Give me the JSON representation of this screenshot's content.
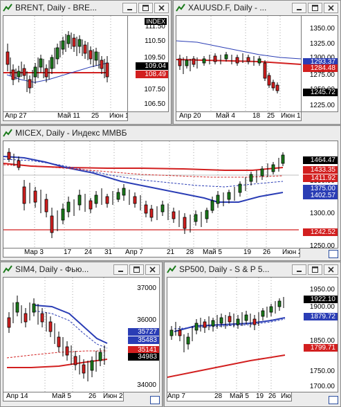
{
  "windows": {
    "brent": {
      "title": "BRENT, Daily - BRE...",
      "scale_header": "INDEX",
      "scale_labels": [
        "111.50",
        "110.50",
        "109.50",
        "107.50",
        "106.50"
      ],
      "price_tag": "109.04",
      "ma_tag": "108.49",
      "time_labels": [
        "Апр 27",
        "Май 11",
        "25",
        "Июн 1"
      ]
    },
    "xauusd": {
      "title": "XAUUSD.F, Daily - ...",
      "scale_labels": [
        "1350.00",
        "1325.00",
        "1300.00",
        "1275.00",
        "1250.00",
        "1225.00"
      ],
      "price_tag": "1245.72",
      "ma_tag": "1284.48",
      "ma2_tag": "1293.37",
      "time_labels": [
        "Апр 20",
        "Май 4",
        "18",
        "25",
        "Июн 1"
      ]
    },
    "micex": {
      "title": "MICEX, Daily - Индекс ММВБ",
      "scale_labels": [
        "1300.00",
        "1250.00",
        "1350.00"
      ],
      "tags": [
        {
          "v": "1464.47",
          "c": "#000000"
        },
        {
          "v": "1433.35",
          "c": "#d21f1f"
        },
        {
          "v": "1411.92",
          "c": "#d21f1f"
        },
        {
          "v": "1402.57",
          "c": "#2a3db5"
        },
        {
          "v": "1375.00",
          "c": "#2a3db5"
        },
        {
          "v": "1242.52",
          "c": "#d21f1f"
        }
      ],
      "time_labels": [
        "Мар 3",
        "17",
        "24",
        "31",
        "Апр 7",
        "21",
        "28",
        "Май 5",
        "19",
        "26",
        "Июн 2"
      ]
    },
    "sim4": {
      "title": "SIM4, Daily - Фью...",
      "scale_labels": [
        "37000",
        "36000",
        "35000",
        "34000"
      ],
      "tags": [
        {
          "v": "35727",
          "c": "#2a3db5"
        },
        {
          "v": "35483",
          "c": "#2a3db5"
        },
        {
          "v": "35141",
          "c": "#d21f1f"
        },
        {
          "v": "34983",
          "c": "#000000"
        }
      ],
      "time_labels": [
        "Апр 14",
        "Май 5",
        "26",
        "Июн 2"
      ]
    },
    "sp500": {
      "title": "SP500, Daily - S & P 5...",
      "scale_labels": [
        "1950.00",
        "1900.00",
        "1850.00",
        "1750.00",
        "1700.00"
      ],
      "tags": [
        {
          "v": "1922.10",
          "c": "#000000"
        },
        {
          "v": "1879.72",
          "c": "#2a3db5"
        },
        {
          "v": "1799.71",
          "c": "#d21f1f"
        }
      ],
      "time_labels": [
        "Апр 7",
        "28",
        "Май 5",
        "19",
        "26",
        "Июн 2"
      ]
    }
  }
}
